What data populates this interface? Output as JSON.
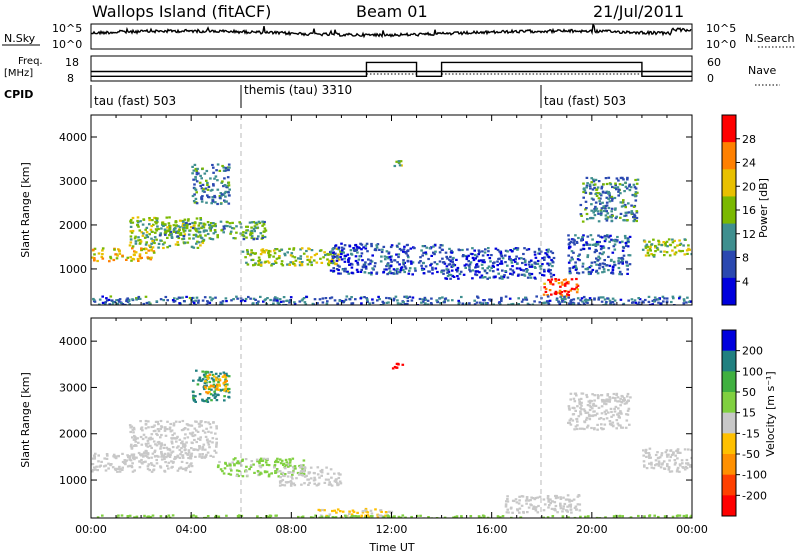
{
  "header": {
    "station": "Wallops Island (fitACF)",
    "beam": "Beam 01",
    "date": "21/Jul/2011"
  },
  "summary_panels": {
    "nsky_label": "N.Sky",
    "nsearch_label": "N.Search",
    "nsky_ticks": [
      "10^5",
      "10^0"
    ],
    "nsearch_ticks": [
      "10^5",
      "10^0"
    ],
    "freq_label": "Freq.",
    "freq_unit": "[MHz]",
    "freq_ticks": [
      "18",
      "8"
    ],
    "nave_label": "Nave",
    "nave_ticks": [
      "60",
      "0"
    ],
    "cpid_label": "CPID",
    "cpid_segments": [
      {
        "label": "tau (fast) 503",
        "start_h": 0
      },
      {
        "label": "themis (tau) 3310",
        "start_h": 6
      },
      {
        "label": "tau (fast) 503",
        "start_h": 18
      }
    ],
    "freq_profile": [
      {
        "from_h": 0,
        "to_h": 24,
        "mhz": 10.5
      }
    ],
    "nave_profile": [
      {
        "from_h": 0,
        "to_h": 11,
        "value": 10
      },
      {
        "from_h": 11,
        "to_h": 13,
        "value": 48
      },
      {
        "from_h": 13,
        "to_h": 14,
        "value": 10
      },
      {
        "from_h": 14,
        "to_h": 22,
        "value": 48
      },
      {
        "from_h": 22,
        "to_h": 24,
        "value": 10
      }
    ]
  },
  "chart_data": [
    {
      "type": "heatmap",
      "name": "power",
      "ylabel": "Slant Range [km]",
      "ylim": [
        180,
        4500
      ],
      "xlim_h": [
        0,
        24
      ],
      "yticks": [
        1000,
        2000,
        3000,
        4000
      ],
      "colorbar_label": "Power [dB]",
      "colorbar_ticks": [
        "28",
        "24",
        "20",
        "16",
        "12",
        "8",
        "4"
      ],
      "colorbar_colors": [
        "#0000dd",
        "#2a48b0",
        "#3f8f8f",
        "#7ab800",
        "#e8c000",
        "#ff8000",
        "#ff0000"
      ],
      "colorbar_range": [
        0,
        30
      ],
      "regions": [
        {
          "x0": 0.0,
          "x1": 2.5,
          "y0": 1200,
          "y1": 1500,
          "level": 20
        },
        {
          "x0": 1.5,
          "x1": 4.5,
          "y0": 1500,
          "y1": 2200,
          "level": 14
        },
        {
          "x0": 4.0,
          "x1": 5.5,
          "y0": 2500,
          "y1": 3400,
          "level": 10
        },
        {
          "x0": 2.5,
          "x1": 7.0,
          "y0": 1700,
          "y1": 2100,
          "level": 12
        },
        {
          "x0": 6.0,
          "x1": 10.0,
          "y0": 1100,
          "y1": 1500,
          "level": 16
        },
        {
          "x0": 9.5,
          "x1": 14.0,
          "y0": 900,
          "y1": 1600,
          "level": 6
        },
        {
          "x0": 12.0,
          "x1": 12.4,
          "y0": 3350,
          "y1": 3500,
          "level": 14
        },
        {
          "x0": 14.0,
          "x1": 18.5,
          "y0": 800,
          "y1": 1500,
          "level": 6
        },
        {
          "x0": 18.0,
          "x1": 19.5,
          "y0": 400,
          "y1": 800,
          "level": 26
        },
        {
          "x0": 19.5,
          "x1": 21.8,
          "y0": 2100,
          "y1": 3100,
          "level": 10
        },
        {
          "x0": 19.0,
          "x1": 21.5,
          "y0": 900,
          "y1": 1800,
          "level": 7
        },
        {
          "x0": 22.0,
          "x1": 24.0,
          "y0": 1300,
          "y1": 1700,
          "level": 16
        },
        {
          "x0": 0.0,
          "x1": 24.0,
          "y0": 200,
          "y1": 400,
          "level": 8
        }
      ]
    },
    {
      "type": "heatmap",
      "name": "velocity",
      "ylabel": "Slant Range [km]",
      "xlabel": "Time UT",
      "ylim": [
        180,
        4500
      ],
      "xlim_h": [
        0,
        24
      ],
      "yticks": [
        1000,
        2000,
        3000,
        4000
      ],
      "xticks": [
        "00:00",
        "04:00",
        "08:00",
        "12:00",
        "16:00",
        "20:00",
        "00:00"
      ],
      "colorbar_label": "Velocity [m s⁻¹]",
      "colorbar_ticks": [
        "200",
        "100",
        "50",
        "15",
        "-15",
        "-50",
        "-100",
        "-200"
      ],
      "colorbar_colors": [
        "#ff0000",
        "#ff4000",
        "#ff9000",
        "#ffc000",
        "#c8c8c8",
        "#80d040",
        "#40b040",
        "#208080",
        "#0000dd"
      ],
      "colorbar_range": [
        -250,
        250
      ],
      "regions": [
        {
          "x0": 0.0,
          "x1": 4.0,
          "y0": 1200,
          "y1": 1600,
          "level": 0
        },
        {
          "x0": 1.5,
          "x1": 5.0,
          "y0": 1500,
          "y1": 2300,
          "level": 0
        },
        {
          "x0": 4.0,
          "x1": 5.5,
          "y0": 2700,
          "y1": 3400,
          "level": 150
        },
        {
          "x0": 4.5,
          "x1": 5.5,
          "y0": 2900,
          "y1": 3300,
          "level": -80
        },
        {
          "x0": 5.0,
          "x1": 8.5,
          "y0": 1100,
          "y1": 1500,
          "level": 40
        },
        {
          "x0": 7.5,
          "x1": 10.0,
          "y0": 900,
          "y1": 1300,
          "level": 0
        },
        {
          "x0": 12.0,
          "x1": 12.4,
          "y0": 3400,
          "y1": 3600,
          "level": -220
        },
        {
          "x0": 16.5,
          "x1": 19.5,
          "y0": 300,
          "y1": 700,
          "level": 0
        },
        {
          "x0": 19.0,
          "x1": 21.5,
          "y0": 2100,
          "y1": 2900,
          "level": 0
        },
        {
          "x0": 22.0,
          "x1": 24.0,
          "y0": 1200,
          "y1": 1700,
          "level": 0
        },
        {
          "x0": 9.0,
          "x1": 12.0,
          "y0": 200,
          "y1": 400,
          "level": -30
        },
        {
          "x0": 0.0,
          "x1": 24.0,
          "y0": 190,
          "y1": 260,
          "level": 60
        }
      ]
    }
  ]
}
